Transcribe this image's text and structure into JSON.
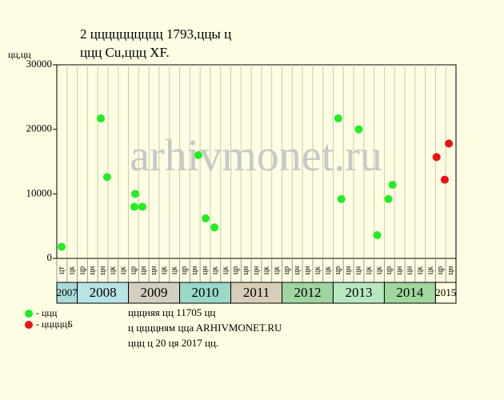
{
  "chart_data": {
    "type": "scatter",
    "title": [
      "2 цццццццццц 1793,ццы ц",
      "ццц Cu,ццц XF."
    ],
    "ylabel": "цц,цц",
    "watermark": "arhivmonet.ru",
    "categories": [
      "цт",
      "цк",
      "цр",
      "цн",
      "цн",
      "цк",
      "цк",
      "цр",
      "цн",
      "цн",
      "цк",
      "цк",
      "цр",
      "цн",
      "цн",
      "цк",
      "цк",
      "цр",
      "цн",
      "цн",
      "цк",
      "цк",
      "цр",
      "цн",
      "цн",
      "цк",
      "цк",
      "цр",
      "цн",
      "цн",
      "цк",
      "цк",
      "цр",
      "цн",
      "цн",
      "цк",
      "цк",
      "цр",
      "цн"
    ],
    "years": [
      "2007",
      "2008",
      "2009",
      "2010",
      "2011",
      "2012",
      "2013",
      "2014",
      "2015"
    ],
    "xlim": [
      0,
      39
    ],
    "ylim": [
      0,
      30000
    ],
    "yticks": [
      0,
      10000,
      20000,
      30000
    ],
    "series": [
      {
        "name": "- ццц",
        "color": "#22ee22",
        "x": [
          0.47,
          4.3,
          4.92,
          7.58,
          7.66,
          8.36,
          13.83,
          14.54,
          15.4,
          27.5,
          27.8,
          29.5,
          31.3,
          32.4,
          32.8
        ],
        "values": [
          1800,
          21700,
          12600,
          8000,
          10000,
          8000,
          16000,
          6200,
          4800,
          21700,
          9200,
          20000,
          3600,
          9200,
          11400
        ]
      },
      {
        "name": "- цццццБ",
        "color": "#ee1111",
        "x": [
          37.1,
          37.9,
          38.3
        ],
        "values": [
          15700,
          12200,
          17800
        ]
      }
    ],
    "notes": [
      "цццняя цц 11705 цц",
      "ц ццццням ццa ARHIVMONET.RU",
      "ццц ц 20 ця 2017 цц."
    ]
  }
}
